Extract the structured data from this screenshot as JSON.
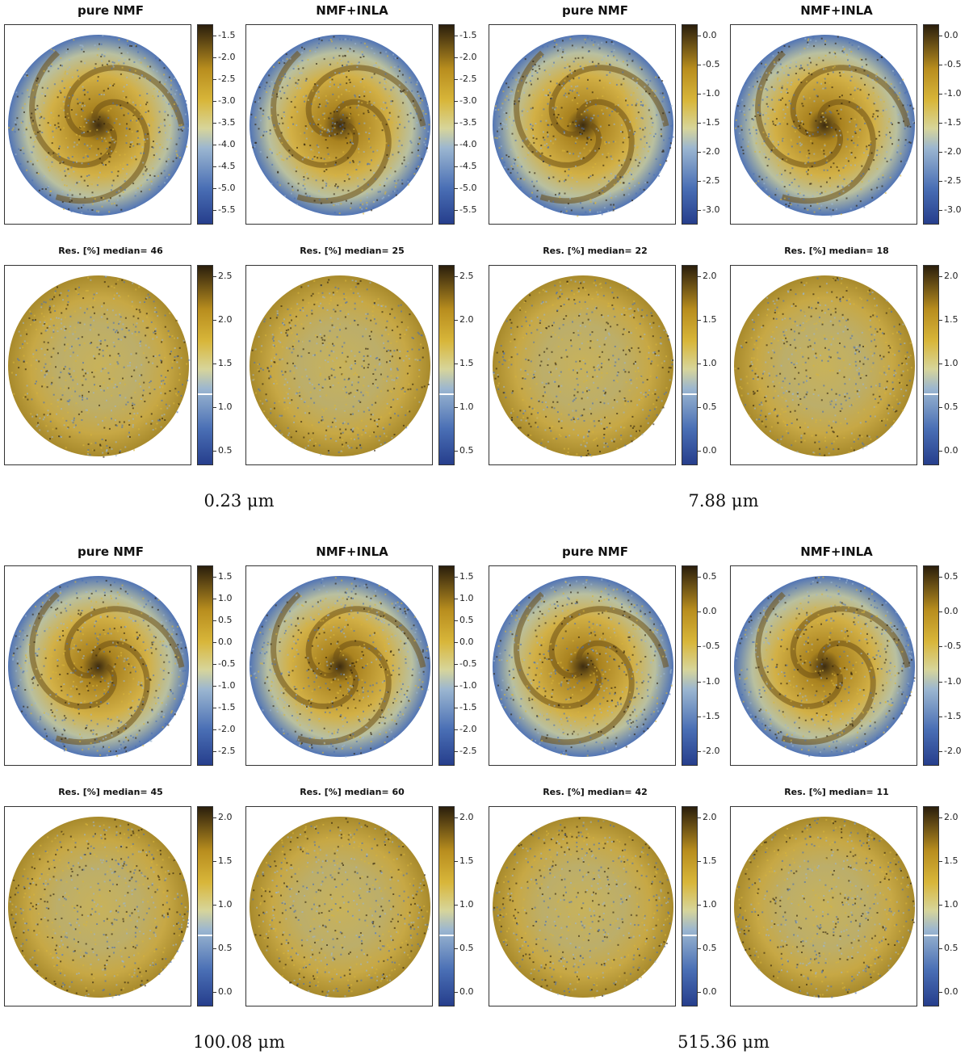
{
  "quadrants": [
    {
      "caption": "0.23 μm",
      "panels": [
        {
          "title": "pure NMF",
          "kind": "map",
          "ticks": [
            "-1.5",
            "-2.0",
            "-2.5",
            "-3.0",
            "-3.5",
            "-4.0",
            "-4.5",
            "-5.0",
            "-5.5"
          ]
        },
        {
          "title": "NMF+INLA",
          "kind": "map",
          "ticks": [
            "-1.5",
            "-2.0",
            "-2.5",
            "-3.0",
            "-3.5",
            "-4.0",
            "-4.5",
            "-5.0",
            "-5.5"
          ]
        },
        {
          "title": "Res. [%]  median= 46",
          "kind": "res",
          "ticks": [
            "2.5",
            "2.0",
            "1.5",
            "1.0",
            "0.5"
          ],
          "marker_level": 0.35
        },
        {
          "title": "Res. [%]  median= 25",
          "kind": "res",
          "ticks": [
            "2.5",
            "2.0",
            "1.5",
            "1.0",
            "0.5"
          ],
          "marker_level": 0.35
        }
      ]
    },
    {
      "caption": "7.88 μm",
      "panels": [
        {
          "title": "pure NMF",
          "kind": "map",
          "ticks": [
            "0.0",
            "-0.5",
            "-1.0",
            "-1.5",
            "-2.0",
            "-2.5",
            "-3.0"
          ]
        },
        {
          "title": "NMF+INLA",
          "kind": "map",
          "ticks": [
            "0.0",
            "-0.5",
            "-1.0",
            "-1.5",
            "-2.0",
            "-2.5",
            "-3.0"
          ]
        },
        {
          "title": "Res. [%]  median= 22",
          "kind": "res",
          "ticks": [
            "2.0",
            "1.5",
            "1.0",
            "0.5",
            "0.0"
          ],
          "marker_level": 0.35
        },
        {
          "title": "Res. [%]  median= 18",
          "kind": "res",
          "ticks": [
            "2.0",
            "1.5",
            "1.0",
            "0.5",
            "0.0"
          ],
          "marker_level": 0.35
        }
      ]
    },
    {
      "caption": "100.08 μm",
      "panels": [
        {
          "title": "pure NMF",
          "kind": "map",
          "ticks": [
            "1.5",
            "1.0",
            "0.5",
            "0.0",
            "-0.5",
            "-1.0",
            "-1.5",
            "-2.0",
            "-2.5"
          ]
        },
        {
          "title": "NMF+INLA",
          "kind": "map",
          "ticks": [
            "1.5",
            "1.0",
            "0.5",
            "0.0",
            "-0.5",
            "-1.0",
            "-1.5",
            "-2.0",
            "-2.5"
          ]
        },
        {
          "title": "Res. [%]  median= 45",
          "kind": "res",
          "ticks": [
            "2.0",
            "1.5",
            "1.0",
            "0.5",
            "0.0"
          ],
          "marker_level": 0.35
        },
        {
          "title": "Res. [%]  median= 60",
          "kind": "res",
          "ticks": [
            "2.0",
            "1.5",
            "1.0",
            "0.5",
            "0.0"
          ],
          "marker_level": 0.35
        }
      ]
    },
    {
      "caption": "515.36 μm",
      "panels": [
        {
          "title": "pure NMF",
          "kind": "map",
          "ticks": [
            "0.5",
            "0.0",
            "-0.5",
            "-1.0",
            "-1.5",
            "-2.0"
          ]
        },
        {
          "title": "NMF+INLA",
          "kind": "map",
          "ticks": [
            "0.5",
            "0.0",
            "-0.5",
            "-1.0",
            "-1.5",
            "-2.0"
          ]
        },
        {
          "title": "Res. [%]  median= 42",
          "kind": "res",
          "ticks": [
            "2.0",
            "1.5",
            "1.0",
            "0.5",
            "0.0"
          ],
          "marker_level": 0.35
        },
        {
          "title": "Res. [%]  median= 11",
          "kind": "res",
          "ticks": [
            "2.0",
            "1.5",
            "1.0",
            "0.5",
            "0.0"
          ],
          "marker_level": 0.35
        }
      ]
    }
  ],
  "colors": {
    "dark": "#2a1e0c",
    "gold": "#d8b63a",
    "pale": "#d7d59a",
    "blue": "#4a6fb5",
    "navy": "#263e8c"
  }
}
